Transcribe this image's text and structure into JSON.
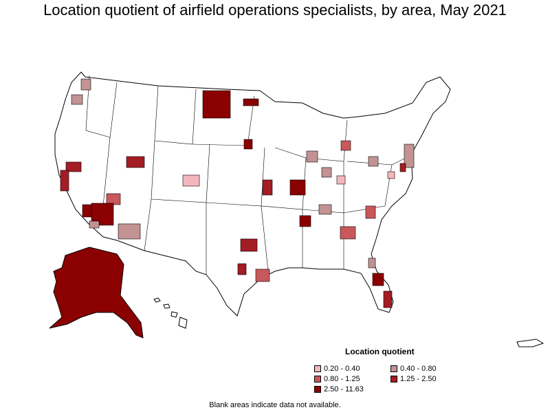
{
  "title": "Location quotient of airfield operations specialists, by area, May 2021",
  "legend": {
    "title": "Location quotient",
    "items": [
      {
        "label": "0.20 - 0.40",
        "color": "#f4b6bd"
      },
      {
        "label": "0.40 - 0.80",
        "color": "#c39393"
      },
      {
        "label": "0.80 - 1.25",
        "color": "#c9585b"
      },
      {
        "label": "1.25 - 2.50",
        "color": "#a41c24"
      },
      {
        "label": "2.50 - 11.63",
        "color": "#8b0000"
      }
    ]
  },
  "note": "Blank areas indicate data not available.",
  "colors": {
    "outline": "#000000",
    "land": "#ffffff"
  }
}
